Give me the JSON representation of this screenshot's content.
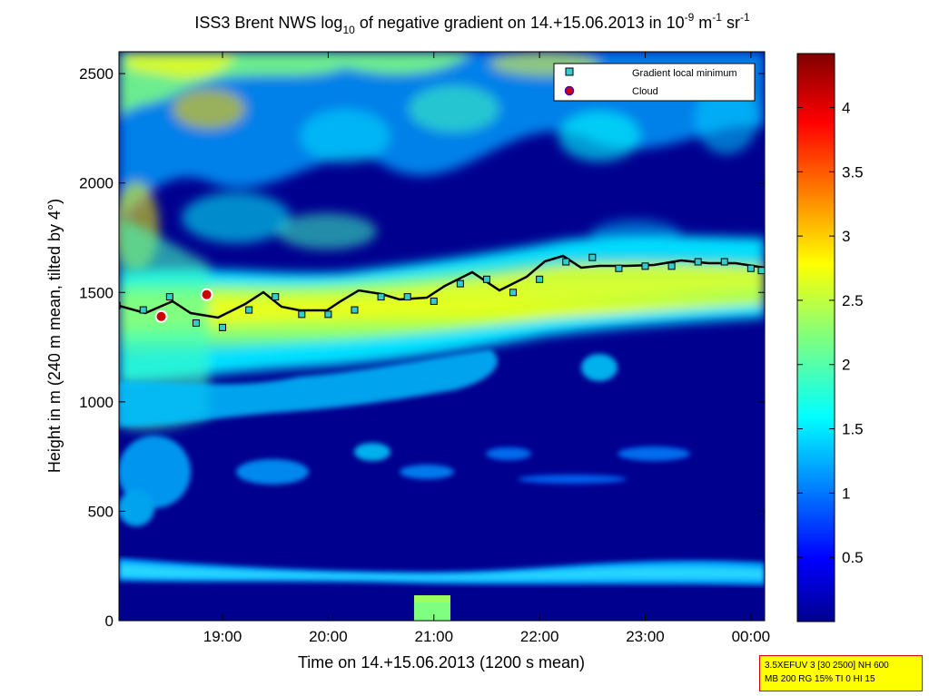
{
  "chart_data": {
    "type": "heatmap",
    "title": {
      "part1": "ISS3 Brent NWS log",
      "sub": "10",
      "part2": " of negative gradient on 14.+15.06.2013 in 10",
      "sup1": "-9",
      "part3": " m",
      "sup2": "-1",
      "part4": " sr",
      "sup3": "-1"
    },
    "xlabel": "Time on 14.+15.06.2013 (1200 s mean)",
    "ylabel": "Height in m (240 m mean, tilted by 4°)",
    "x_ticks": [
      "19:00",
      "20:00",
      "21:00",
      "22:00",
      "23:00",
      "00:00"
    ],
    "x_tick_hours": [
      19,
      20,
      21,
      22,
      23,
      24
    ],
    "xlim_hours": [
      18.02,
      24.13
    ],
    "y_ticks": [
      "0",
      "500",
      "1000",
      "1500",
      "2000",
      "2500"
    ],
    "y_tick_values": [
      0,
      500,
      1000,
      1500,
      2000,
      2500
    ],
    "ylim": [
      0,
      2600
    ],
    "colorbar": {
      "ticks": [
        "0.5",
        "1",
        "1.5",
        "2",
        "2.5",
        "3",
        "3.5",
        "4"
      ],
      "tick_values": [
        0.5,
        1,
        1.5,
        2,
        2.5,
        3,
        3.5,
        4
      ],
      "range": [
        0,
        4.42
      ],
      "colormap": "jet"
    },
    "legend": {
      "placement": "top-right",
      "entries": [
        {
          "label": "Gradient local minimum",
          "marker": "square",
          "color": "#33cccc"
        },
        {
          "label": "Cloud",
          "marker": "circle",
          "color": "#cc0000"
        }
      ]
    },
    "series": [
      {
        "name": "Gradient local minimum",
        "x": [
          18.0,
          18.25,
          18.5,
          18.75,
          19.0,
          19.25,
          19.5,
          19.75,
          20.0,
          20.25,
          20.5,
          20.75,
          21.0,
          21.25,
          21.5,
          21.75,
          22.0,
          22.25,
          22.5,
          22.75,
          23.0,
          23.25,
          23.5,
          23.75,
          24.0,
          24.1
        ],
        "y": [
          1440,
          1420,
          1480,
          1360,
          1340,
          1420,
          1480,
          1400,
          1400,
          1420,
          1480,
          1480,
          1460,
          1540,
          1560,
          1500,
          1560,
          1640,
          1660,
          1610,
          1620,
          1620,
          1640,
          1640,
          1610,
          1600
        ]
      }
    ],
    "cloud_points": [
      {
        "x": 18.42,
        "y": 1390
      },
      {
        "x": 18.85,
        "y": 1490
      }
    ]
  },
  "info_box": {
    "line1": "3.5XEFUV 3 [30 2500] NH 600",
    "line2": "MB 200 RG 15% TI 0 HI 15"
  }
}
